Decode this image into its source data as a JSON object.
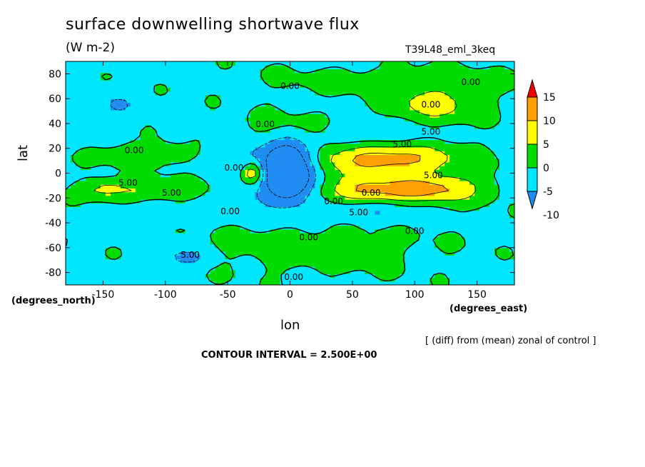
{
  "chart_data": {
    "type": "heatmap",
    "title": "surface downwelling shortwave flux",
    "subtitle": "(W m-2)",
    "run_label": "T39L48_eml_3keq",
    "xlabel": "lon",
    "ylabel": "lat",
    "x_units": "(degrees_east)",
    "y_units": "(degrees_north)",
    "xlim": [
      -180,
      180
    ],
    "ylim": [
      -90,
      90
    ],
    "x_ticks": [
      -150,
      -100,
      -50,
      0,
      50,
      100,
      150
    ],
    "y_ticks": [
      -80,
      -60,
      -40,
      -20,
      0,
      20,
      40,
      60,
      80
    ],
    "colorbar": {
      "levels": [
        -10,
        -5,
        0,
        5,
        10,
        15
      ],
      "colors": [
        "#1e8cf0",
        "#00e6ff",
        "#00dc00",
        "#ffff00",
        "#ffa000",
        "#f00000"
      ]
    },
    "contour_labels": [
      {
        "lon": 0,
        "lat": 70,
        "text": "0.00"
      },
      {
        "lon": 145,
        "lat": 73,
        "text": "0.00"
      },
      {
        "lon": 113,
        "lat": 55,
        "text": "0.00"
      },
      {
        "lon": -20,
        "lat": 39,
        "text": "0.00"
      },
      {
        "lon": 90,
        "lat": 23,
        "text": "5.00"
      },
      {
        "lon": 113,
        "lat": 33,
        "text": "5.00"
      },
      {
        "lon": -125,
        "lat": 18,
        "text": "0.00"
      },
      {
        "lon": -45,
        "lat": 4,
        "text": "0.00"
      },
      {
        "lon": 115,
        "lat": -2,
        "text": "5.00"
      },
      {
        "lon": -130,
        "lat": -8,
        "text": "5.00"
      },
      {
        "lon": -95,
        "lat": -16,
        "text": "5.00"
      },
      {
        "lon": 65,
        "lat": -16,
        "text": "0.00"
      },
      {
        "lon": 35,
        "lat": -23,
        "text": "0.00"
      },
      {
        "lon": -48,
        "lat": -31,
        "text": "0.00"
      },
      {
        "lon": 55,
        "lat": -32,
        "text": "5.00"
      },
      {
        "lon": 100,
        "lat": -47,
        "text": "0.00"
      },
      {
        "lon": 15,
        "lat": -52,
        "text": "0.00"
      },
      {
        "lon": -80,
        "lat": -66,
        "text": "5.00"
      },
      {
        "lon": 3,
        "lat": -84,
        "text": "0.00"
      }
    ],
    "contour_interval_label": "CONTOUR INTERVAL = 2.500E+00",
    "note": "[ (diff) from (mean) zonal of control ]"
  }
}
